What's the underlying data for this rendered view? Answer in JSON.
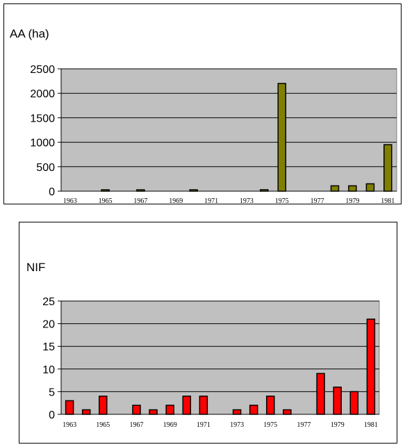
{
  "chart_data": [
    {
      "type": "bar",
      "ylabel": "AA (ha)",
      "ylim": [
        0,
        2500
      ],
      "yticks": [
        0,
        500,
        1000,
        1500,
        2000,
        2500
      ],
      "x": [
        1963,
        1964,
        1965,
        1966,
        1967,
        1968,
        1969,
        1970,
        1971,
        1972,
        1973,
        1974,
        1975,
        1976,
        1977,
        1978,
        1979,
        1980,
        1981
      ],
      "xtick_labels": [
        "1963",
        "1965",
        "1967",
        "1969",
        "1971",
        "1973",
        "1975",
        "1977",
        "1979",
        "1981"
      ],
      "values": [
        0,
        0,
        5,
        0,
        5,
        0,
        0,
        5,
        0,
        0,
        0,
        30,
        2200,
        0,
        0,
        110,
        110,
        150,
        950
      ],
      "bar_color": "#808000",
      "plot_bg": "#c0c0c0",
      "grid": true
    },
    {
      "type": "bar",
      "ylabel": "NIF",
      "ylim": [
        0,
        25
      ],
      "yticks": [
        0,
        5,
        10,
        15,
        20,
        25
      ],
      "x": [
        1963,
        1964,
        1965,
        1966,
        1967,
        1968,
        1969,
        1970,
        1971,
        1972,
        1973,
        1974,
        1975,
        1976,
        1977,
        1978,
        1979,
        1980,
        1981
      ],
      "xtick_labels": [
        "1963",
        "1965",
        "1967",
        "1969",
        "1971",
        "1973",
        "1975",
        "1977",
        "1979",
        "1981"
      ],
      "values": [
        3,
        1,
        4,
        0,
        2,
        1,
        2,
        4,
        4,
        0,
        1,
        2,
        4,
        1,
        0,
        9,
        6,
        5,
        21
      ],
      "bar_color": "#ff0000",
      "plot_bg": "#c0c0c0",
      "grid": true
    }
  ]
}
